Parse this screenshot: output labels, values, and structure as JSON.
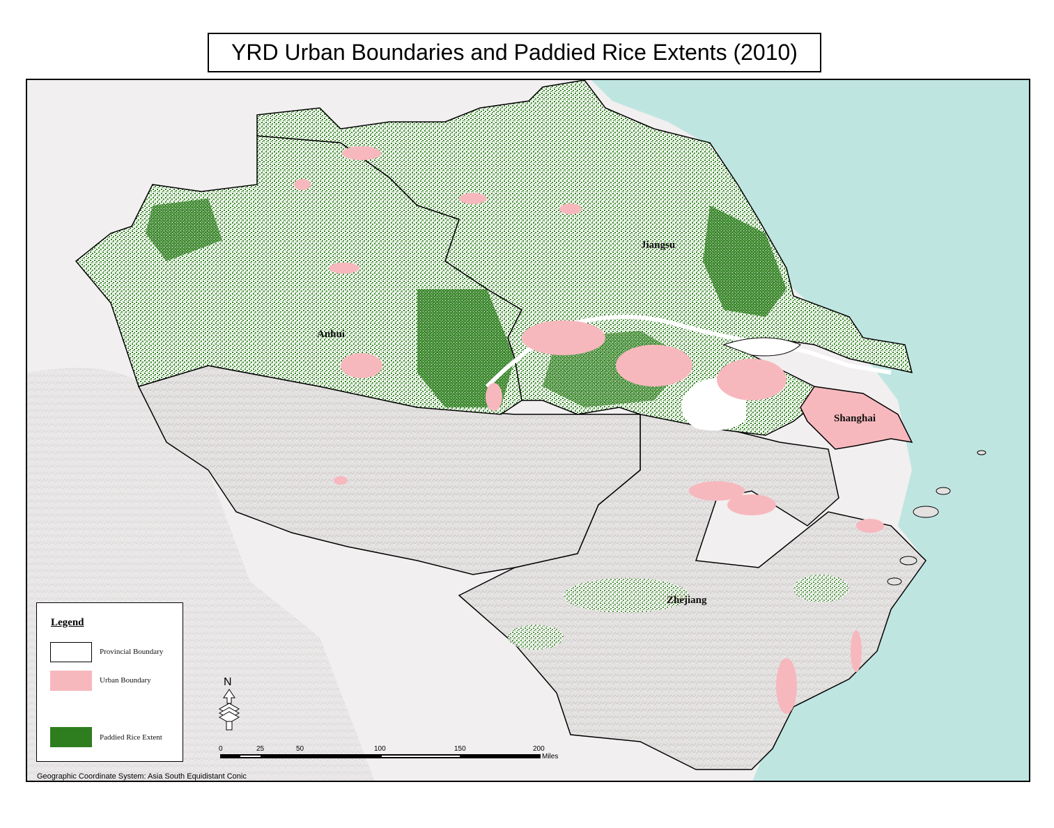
{
  "title": "YRD Urban Boundaries and Paddied Rice Extents (2010)",
  "colors": {
    "sea": "#bfe5e1",
    "terrain": "#e2dfdf",
    "lowland": "#ffffff",
    "rice": "#2e7d1f",
    "urban": "#f7b8bd",
    "boundary": "#000000"
  },
  "provinces": {
    "anhui": "Anhui",
    "jiangsu": "Jiangsu",
    "shanghai": "Shanghai",
    "zhejiang": "Zhejiang"
  },
  "legend": {
    "title": "Legend",
    "items": [
      {
        "label": "Provincial Boundary",
        "icon": "outline-swatch"
      },
      {
        "label": "Urban Boundary",
        "icon": "pink-swatch"
      },
      {
        "label": "Paddied Rice Extent",
        "icon": "green-swatch"
      }
    ]
  },
  "north_arrow": {
    "letter": "N",
    "icon": "north-arrow-icon"
  },
  "scale_bar": {
    "ticks": [
      "0",
      "25",
      "50",
      "100",
      "150",
      "200"
    ],
    "unit": "Miles"
  },
  "coordinate_system": "Geographic Coordinate System: Asia South Equidistant Conic"
}
